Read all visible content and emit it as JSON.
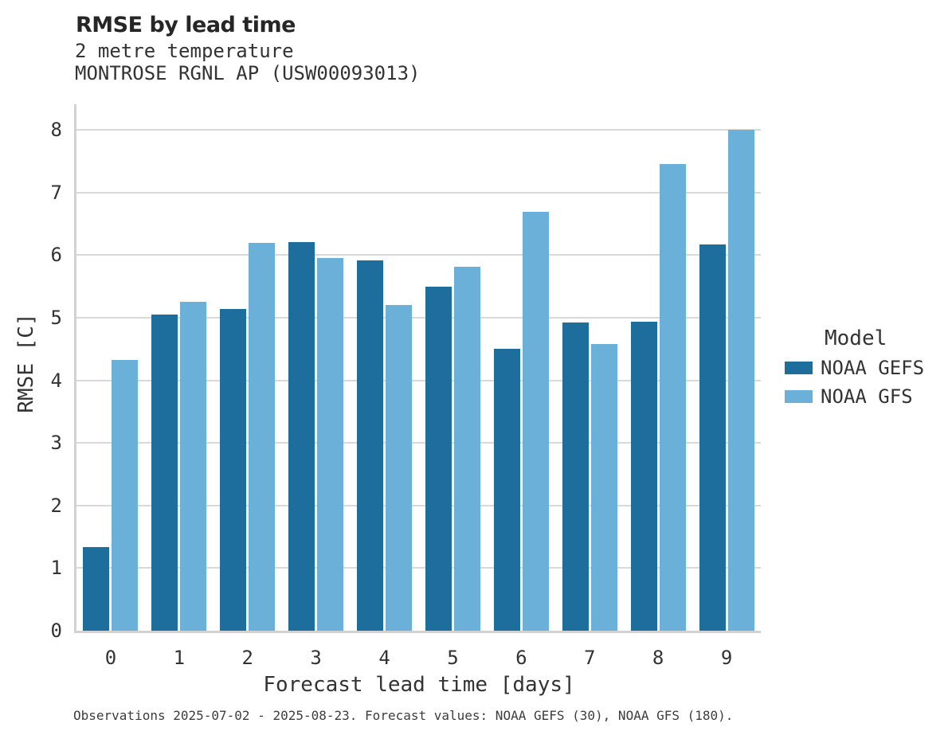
{
  "header": {
    "title": "RMSE by lead time",
    "subtitle": "2 metre temperature",
    "station": "MONTROSE RGNL AP (USW00093013)"
  },
  "chart_data": {
    "type": "bar",
    "title": "RMSE by lead time",
    "subtitle": "2 metre temperature",
    "station": "MONTROSE RGNL AP (USW00093013)",
    "categories": [
      "0",
      "1",
      "2",
      "3",
      "4",
      "5",
      "6",
      "7",
      "8",
      "9"
    ],
    "series": [
      {
        "name": "NOAA GEFS",
        "color": "#1d6e9d",
        "values": [
          1.33,
          5.05,
          5.14,
          6.21,
          5.92,
          5.5,
          4.51,
          4.93,
          4.94,
          6.17
        ]
      },
      {
        "name": "NOAA GFS",
        "color": "#6bb0d8",
        "values": [
          4.33,
          5.26,
          6.2,
          5.96,
          5.2,
          5.82,
          6.69,
          4.58,
          7.46,
          8.0
        ]
      }
    ],
    "xlabel": "Forecast lead time [days]",
    "ylabel": "RMSE [C]",
    "ylim": [
      0,
      8.41
    ],
    "yticks": [
      0,
      1,
      2,
      3,
      4,
      5,
      6,
      7,
      8
    ],
    "grid": true,
    "legend_title": "Model",
    "legend_position": "right"
  },
  "legend": {
    "title": "Model",
    "items": [
      {
        "label": "NOAA GEFS",
        "color": "#1d6e9d"
      },
      {
        "label": "NOAA GFS",
        "color": "#6bb0d8"
      }
    ]
  },
  "caption": "Observations 2025-07-02 - 2025-08-23. Forecast values: NOAA GEFS (30), NOAA GFS (180).",
  "colors": {
    "background": "#ffffff",
    "gridline": "#d9d9d9",
    "spine": "#d2d2d2",
    "title_text": "#262626",
    "body_text": "#333333",
    "caption_text": "#3d3d3d",
    "bar_dark": "#1d6e9d",
    "bar_light": "#6bb0d8"
  }
}
